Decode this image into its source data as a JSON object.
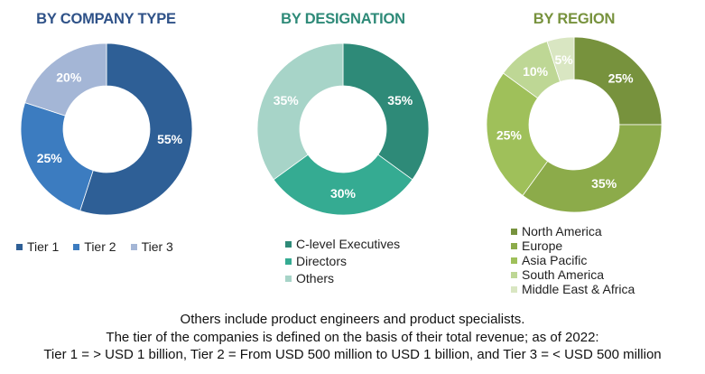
{
  "chart_data": [
    {
      "type": "pie",
      "title": "BY COMPANY TYPE",
      "donut": true,
      "legend_position": "bottom",
      "categories": [
        "Tier 1",
        "Tier 2",
        "Tier 3"
      ],
      "values": [
        55,
        25,
        20
      ],
      "labels": [
        "55%",
        "25%",
        "20%"
      ],
      "colors": [
        "#2e5f96",
        "#3c7cc0",
        "#a4b6d6"
      ],
      "title_color": "#2f5288"
    },
    {
      "type": "pie",
      "title": "BY DESIGNATION",
      "donut": true,
      "legend_position": "bottom",
      "categories": [
        "C-level Executives",
        "Directors",
        "Others"
      ],
      "values": [
        35,
        30,
        35
      ],
      "labels": [
        "35%",
        "30%",
        "35%"
      ],
      "colors": [
        "#2e8a78",
        "#35ab92",
        "#a7d4c8"
      ],
      "title_color": "#2e8a78"
    },
    {
      "type": "pie",
      "title": "BY REGION",
      "donut": true,
      "legend_position": "bottom",
      "categories": [
        "North America",
        "Europe",
        "Asia Pacific",
        "South America",
        "Middle East & Africa"
      ],
      "values": [
        25,
        35,
        25,
        10,
        5
      ],
      "labels": [
        "25%",
        "35%",
        "25%",
        "10%",
        "5%"
      ],
      "colors": [
        "#77923d",
        "#8cab4a",
        "#9fc05a",
        "#bed795",
        "#d9e6c2"
      ],
      "title_color": "#77923d"
    }
  ],
  "footnote": {
    "line1": "Others include product engineers and product specialists.",
    "line2": "The tier of the companies is defined on the basis of their total revenue; as of 2022:",
    "line3": "Tier 1 = > USD 1 billion, Tier 2 = From USD 500 million to USD 1 billion, and Tier 3 = < USD 500 million"
  }
}
